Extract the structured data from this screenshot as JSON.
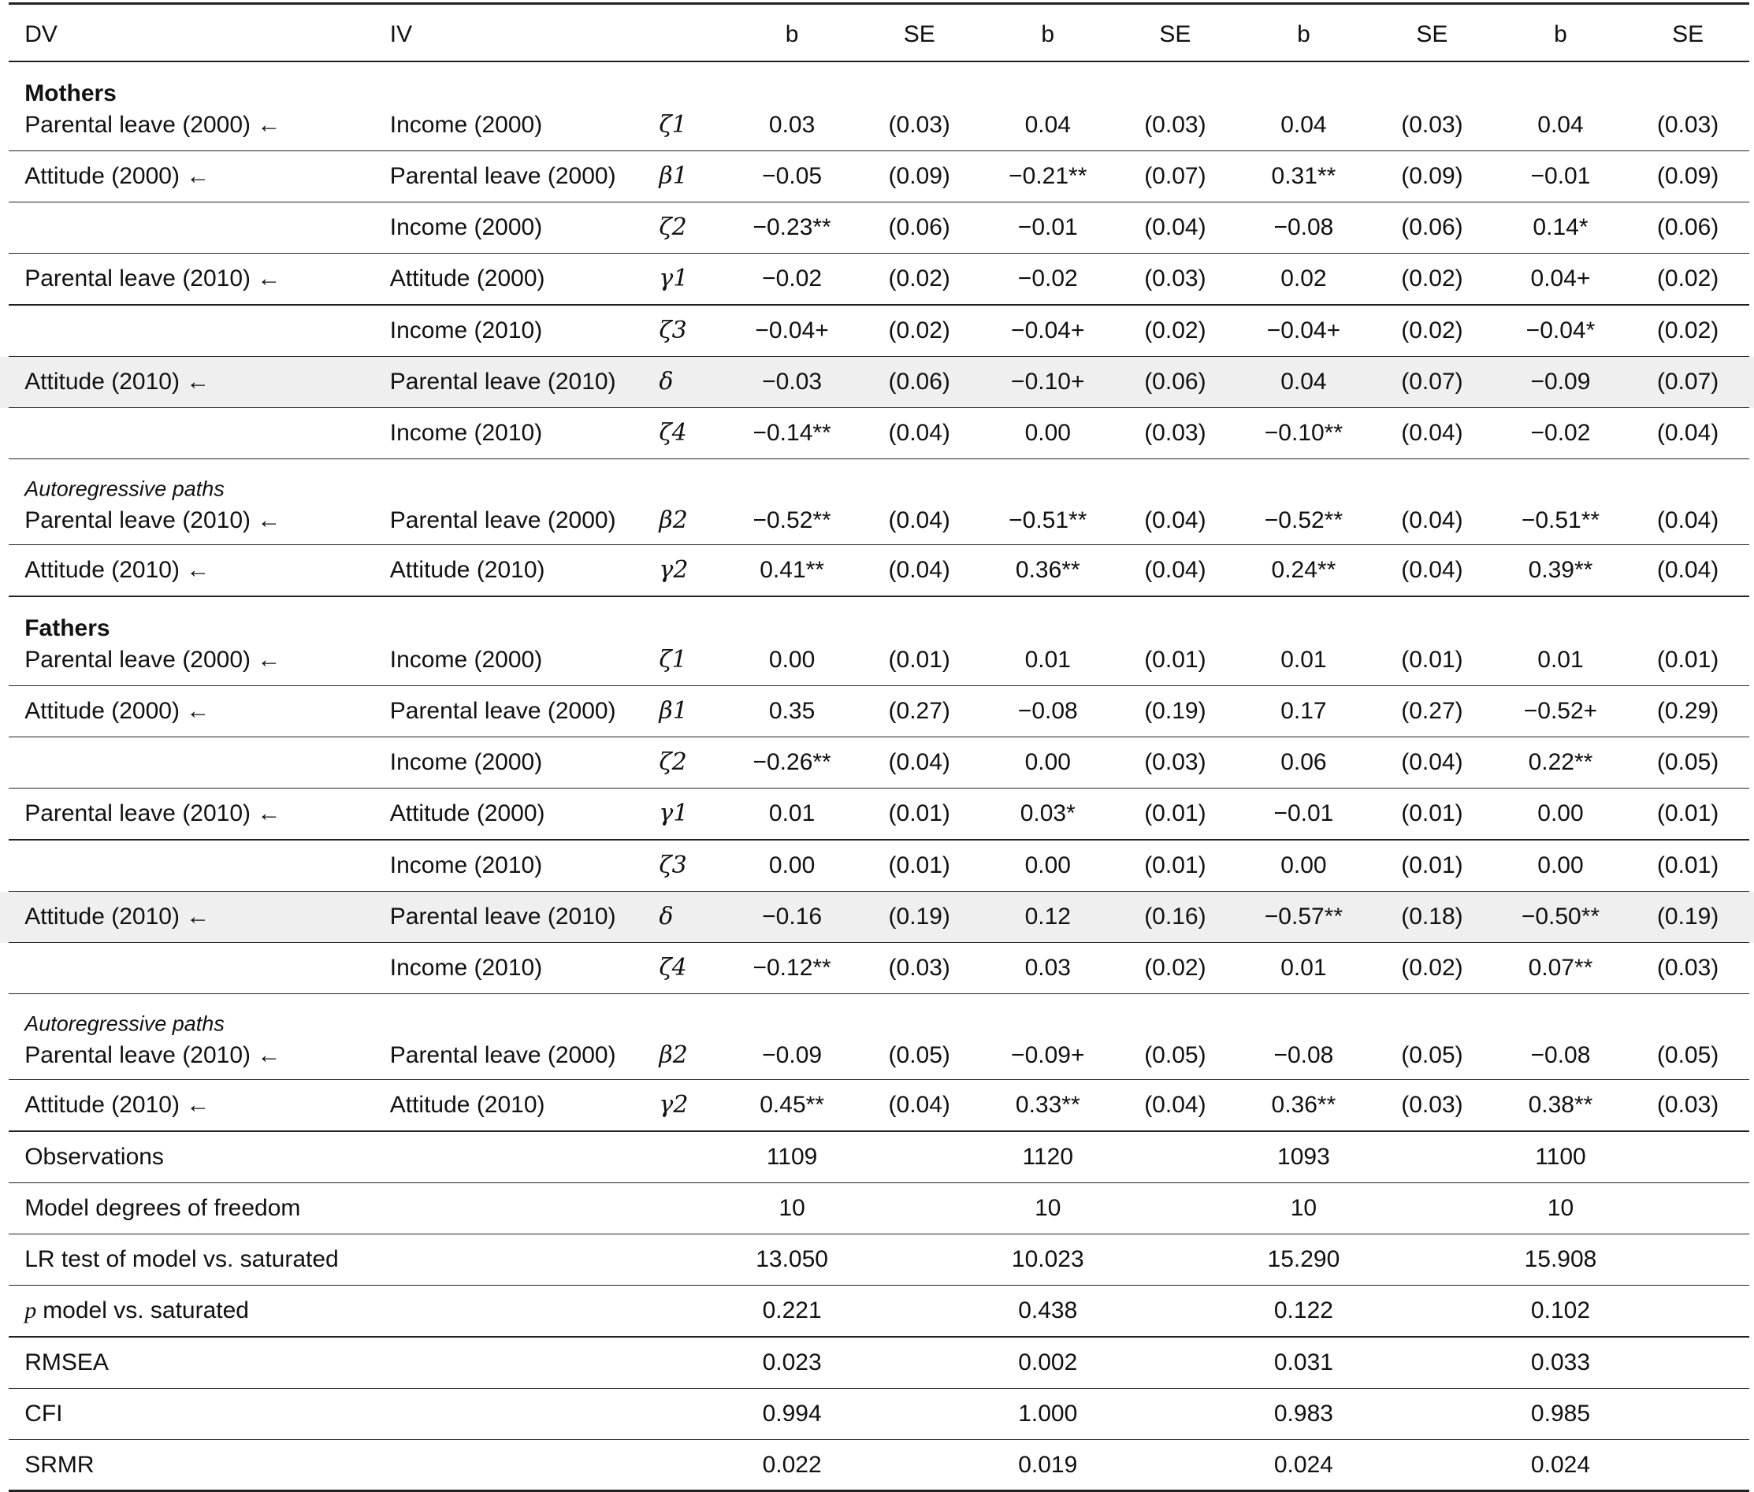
{
  "header": {
    "dv": "DV",
    "iv": "IV",
    "cols": [
      "b",
      "SE",
      "b",
      "SE",
      "b",
      "SE",
      "b",
      "SE"
    ]
  },
  "rows": [
    {
      "section": "Mothers",
      "dv": "Parental leave (2000) ←",
      "iv": "Income (2000)",
      "sym": "ζ1",
      "cells": [
        "0.03",
        "(0.03)",
        "0.04",
        "(0.03)",
        "0.04",
        "(0.03)",
        "0.04",
        "(0.03)"
      ]
    },
    {
      "dv": "Attitude (2000) ←",
      "iv": "Parental leave (2000)",
      "sym": "β1",
      "cells": [
        "−0.05",
        "(0.09)",
        "−0.21**",
        "(0.07)",
        "0.31**",
        "(0.09)",
        "−0.01",
        "(0.09)"
      ]
    },
    {
      "iv": "Income (2000)",
      "sym": "ζ2",
      "cells": [
        "−0.23**",
        "(0.06)",
        "−0.01",
        "(0.04)",
        "−0.08",
        "(0.06)",
        "0.14*",
        "(0.06)"
      ]
    },
    {
      "dv": "Parental leave (2010) ←",
      "iv": "Attitude (2000)",
      "sym": "γ1",
      "cells": [
        "−0.02",
        "(0.02)",
        "−0.02",
        "(0.03)",
        "0.02",
        "(0.02)",
        "0.04+",
        "(0.02)"
      ]
    },
    {
      "iv": "Income (2010)",
      "sym": "ζ3",
      "cells": [
        "−0.04+",
        "(0.02)",
        "−0.04+",
        "(0.02)",
        "−0.04+",
        "(0.02)",
        "−0.04*",
        "(0.02)"
      ]
    },
    {
      "shaded": true,
      "dv": "Attitude (2010) ←",
      "iv": "Parental leave (2010)",
      "sym": "δ",
      "cells": [
        "−0.03",
        "(0.06)",
        "−0.10+",
        "(0.06)",
        "0.04",
        "(0.07)",
        "−0.09",
        "(0.07)"
      ]
    },
    {
      "iv": "Income (2010)",
      "sym": "ζ4",
      "cells": [
        "−0.14**",
        "(0.04)",
        "0.00",
        "(0.03)",
        "−0.10**",
        "(0.04)",
        "−0.02",
        "(0.04)"
      ]
    },
    {
      "subsection": "Autoregressive paths",
      "dv": "Parental leave (2010) ←",
      "iv": "Parental leave (2000)",
      "sym": "β2",
      "cells": [
        "−0.52**",
        "(0.04)",
        "−0.51**",
        "(0.04)",
        "−0.52**",
        "(0.04)",
        "−0.51**",
        "(0.04)"
      ]
    },
    {
      "dv": "Attitude (2010) ←",
      "iv": "Attitude (2010)",
      "sym": "γ2",
      "cells": [
        "0.41**",
        "(0.04)",
        "0.36**",
        "(0.04)",
        "0.24**",
        "(0.04)",
        "0.39**",
        "(0.04)"
      ]
    },
    {
      "section": "Fathers",
      "dv": "Parental leave (2000) ←",
      "iv": "Income (2000)",
      "sym": "ζ1",
      "cells": [
        "0.00",
        "(0.01)",
        "0.01",
        "(0.01)",
        "0.01",
        "(0.01)",
        "0.01",
        "(0.01)"
      ]
    },
    {
      "dv": "Attitude (2000) ←",
      "iv": "Parental leave (2000)",
      "sym": "β1",
      "cells": [
        "0.35",
        "(0.27)",
        "−0.08",
        "(0.19)",
        "0.17",
        "(0.27)",
        "−0.52+",
        "(0.29)"
      ]
    },
    {
      "iv": "Income (2000)",
      "sym": "ζ2",
      "cells": [
        "−0.26**",
        "(0.04)",
        "0.00",
        "(0.03)",
        "0.06",
        "(0.04)",
        "0.22**",
        "(0.05)"
      ]
    },
    {
      "dv": "Parental leave (2010) ←",
      "iv": "Attitude (2000)",
      "sym": "γ1",
      "cells": [
        "0.01",
        "(0.01)",
        "0.03*",
        "(0.01)",
        "−0.01",
        "(0.01)",
        "0.00",
        "(0.01)"
      ]
    },
    {
      "iv": "Income (2010)",
      "sym": "ζ3",
      "cells": [
        "0.00",
        "(0.01)",
        "0.00",
        "(0.01)",
        "0.00",
        "(0.01)",
        "0.00",
        "(0.01)"
      ]
    },
    {
      "shaded": true,
      "dv": "Attitude (2010) ←",
      "iv": "Parental leave (2010)",
      "sym": "δ",
      "cells": [
        "−0.16",
        "(0.19)",
        "0.12",
        "(0.16)",
        "−0.57**",
        "(0.18)",
        "−0.50**",
        "(0.19)"
      ]
    },
    {
      "iv": "Income (2010)",
      "sym": "ζ4",
      "cells": [
        "−0.12**",
        "(0.03)",
        "0.03",
        "(0.02)",
        "0.01",
        "(0.02)",
        "0.07**",
        "(0.03)"
      ]
    },
    {
      "subsection": "Autoregressive paths",
      "dv": "Parental leave (2010) ←",
      "iv": "Parental leave (2000)",
      "sym": "β2",
      "cells": [
        "−0.09",
        "(0.05)",
        "−0.09+",
        "(0.05)",
        "−0.08",
        "(0.05)",
        "−0.08",
        "(0.05)"
      ]
    },
    {
      "dv": "Attitude (2010) ←",
      "iv": "Attitude (2010)",
      "sym": "γ2",
      "cells": [
        "0.45**",
        "(0.04)",
        "0.33**",
        "(0.04)",
        "0.36**",
        "(0.03)",
        "0.38**",
        "(0.03)"
      ]
    }
  ],
  "stats": [
    {
      "label": "Observations",
      "values": [
        "1109",
        "1120",
        "1093",
        "1100"
      ]
    },
    {
      "label": "Model degrees of freedom",
      "values": [
        "10",
        "10",
        "10",
        "10"
      ]
    },
    {
      "label": "LR test of model vs. saturated",
      "values": [
        "13.050",
        "10.023",
        "15.290",
        "15.908"
      ]
    },
    {
      "label_italic": "p",
      "label": "model vs. saturated",
      "values": [
        "0.221",
        "0.438",
        "0.122",
        "0.102"
      ]
    },
    {
      "label": "RMSEA",
      "values": [
        "0.023",
        "0.002",
        "0.031",
        "0.033"
      ]
    },
    {
      "label": "CFI",
      "values": [
        "0.994",
        "1.000",
        "0.983",
        "0.985"
      ]
    },
    {
      "label": "SRMR",
      "values": [
        "0.022",
        "0.019",
        "0.024",
        "0.024"
      ]
    }
  ]
}
